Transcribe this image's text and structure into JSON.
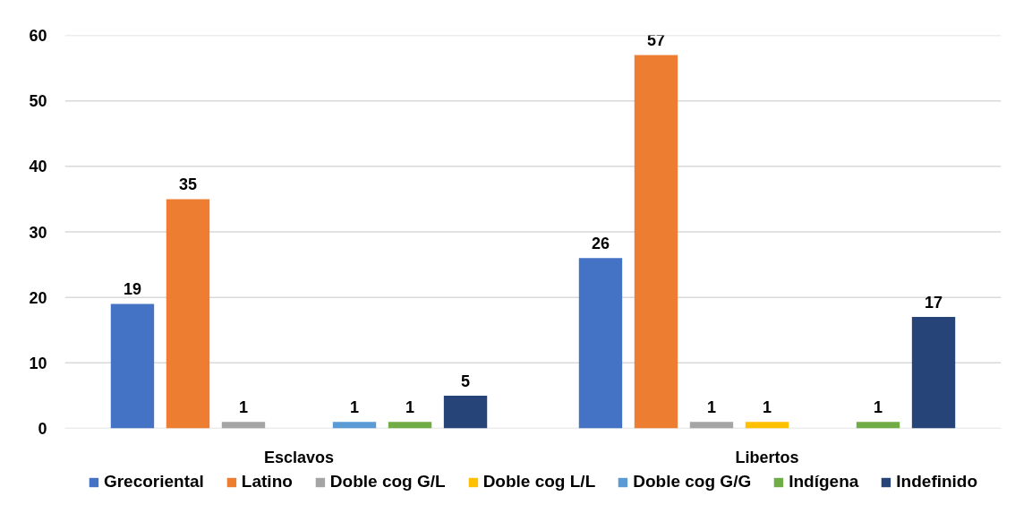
{
  "chart_data": {
    "type": "bar",
    "categories": [
      "Esclavos",
      "Libertos"
    ],
    "series": [
      {
        "name": "Grecoriental",
        "color": "#4472c4",
        "values": [
          19,
          26
        ]
      },
      {
        "name": "Latino",
        "color": "#ed7d31",
        "values": [
          35,
          57
        ]
      },
      {
        "name": "Doble cog G/L",
        "color": "#a5a5a5",
        "values": [
          1,
          1
        ]
      },
      {
        "name": "Doble cog L/L",
        "color": "#ffc000",
        "values": [
          null,
          1
        ]
      },
      {
        "name": "Doble cog G/G",
        "color": "#5b9bd5",
        "values": [
          1,
          null
        ]
      },
      {
        "name": "Indígena",
        "color": "#70ad47",
        "values": [
          1,
          1
        ]
      },
      {
        "name": "Indefinido",
        "color": "#264478",
        "values": [
          5,
          17
        ]
      }
    ],
    "ylim": [
      0,
      60
    ],
    "yticks": [
      0,
      10,
      20,
      30,
      40,
      50,
      60
    ],
    "grid": "y",
    "legend": "bottom",
    "data_labels": true
  }
}
